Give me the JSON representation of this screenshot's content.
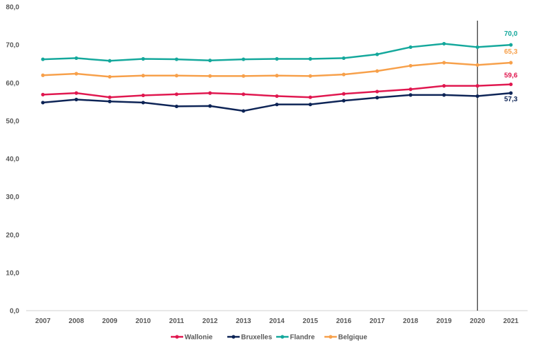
{
  "chart_data": {
    "type": "line",
    "categories": [
      "2007",
      "2008",
      "2009",
      "2010",
      "2011",
      "2012",
      "2013",
      "2014",
      "2015",
      "2016",
      "2017",
      "2018",
      "2019",
      "2020",
      "2021"
    ],
    "ylim": [
      0,
      80
    ],
    "yticks": [
      0,
      10,
      20,
      30,
      40,
      50,
      60,
      70,
      80
    ],
    "ytick_labels": [
      "0,0",
      "10,0",
      "20,0",
      "30,0",
      "40,0",
      "50,0",
      "60,0",
      "70,0",
      "80,0"
    ],
    "grid": false,
    "legend_position": "bottom",
    "vertical_marker_category": "2020",
    "series": [
      {
        "name": "Wallonie",
        "color": "#E0174F",
        "values": [
          56.9,
          57.3,
          56.2,
          56.7,
          57.0,
          57.3,
          57.0,
          56.5,
          56.2,
          57.1,
          57.7,
          58.3,
          59.2,
          59.2,
          59.6
        ],
        "end_label": "59,6"
      },
      {
        "name": "Bruxelles",
        "color": "#0D2456",
        "values": [
          54.8,
          55.6,
          55.1,
          54.8,
          53.8,
          53.9,
          52.6,
          54.3,
          54.3,
          55.3,
          56.1,
          56.8,
          56.8,
          56.5,
          57.3
        ],
        "end_label": "57,3"
      },
      {
        "name": "Flandre",
        "color": "#14A89C",
        "values": [
          66.2,
          66.5,
          65.8,
          66.3,
          66.2,
          65.9,
          66.2,
          66.3,
          66.3,
          66.5,
          67.5,
          69.4,
          70.3,
          69.4,
          70.0
        ],
        "end_label": "70,0"
      },
      {
        "name": "Belgique",
        "color": "#F7A04A",
        "values": [
          62.0,
          62.4,
          61.6,
          61.9,
          61.9,
          61.8,
          61.8,
          61.9,
          61.8,
          62.2,
          63.1,
          64.5,
          65.3,
          64.7,
          65.3
        ],
        "end_label": "65,3"
      }
    ]
  }
}
